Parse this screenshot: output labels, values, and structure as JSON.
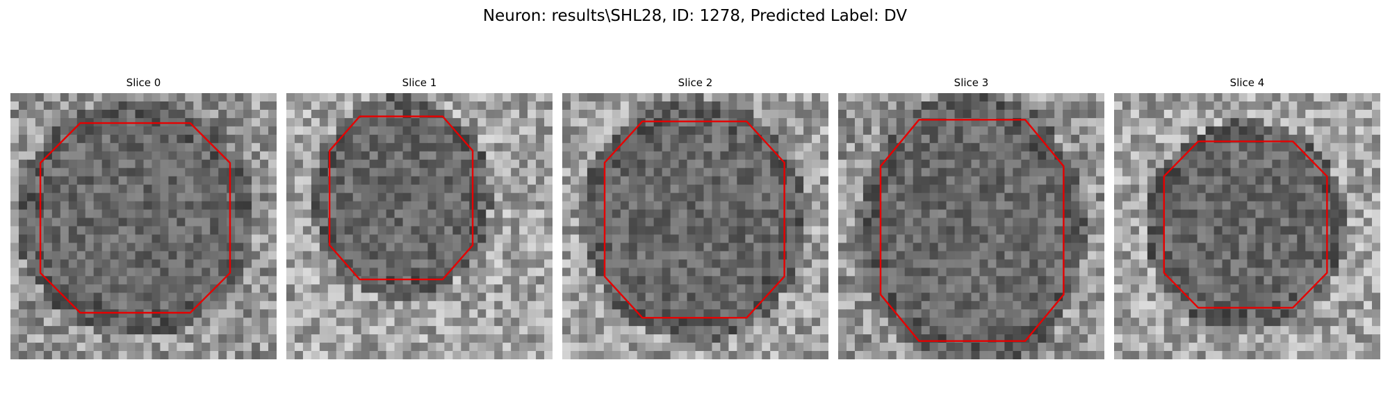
{
  "figure": {
    "title": "Neuron: results\\SHL28, ID: 1278, Predicted Label: DV"
  },
  "style": {
    "contour_color": "#e60000",
    "image_colormap": "gray"
  },
  "slices": [
    {
      "title": "Slice 0"
    },
    {
      "title": "Slice 1"
    },
    {
      "title": "Slice 2"
    },
    {
      "title": "Slice 3"
    },
    {
      "title": "Slice 4"
    }
  ]
}
